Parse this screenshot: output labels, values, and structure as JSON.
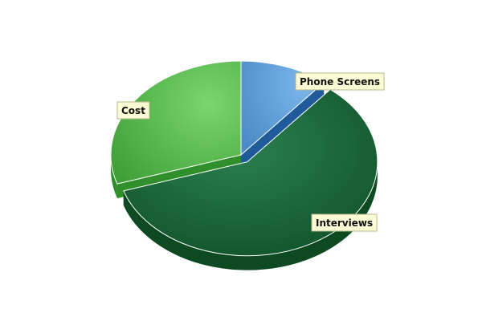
{
  "chart_data": {
    "type": "pie",
    "style": "3d-exploded",
    "slices": [
      {
        "label": "Phone Screens",
        "value": 11,
        "color": "#5f9fd8",
        "side_color": "#1f5a9a",
        "exploded": false
      },
      {
        "label": "Interviews",
        "value": 59,
        "color": "#1e6e3c",
        "side_color": "#0d4a22",
        "exploded": true
      },
      {
        "label": "Cost",
        "value": 30,
        "color": "#5cc25a",
        "side_color": "#2f8f2a",
        "exploded": false
      }
    ],
    "start_angle_deg": -90,
    "legend": "none",
    "labels": "callout-boxes"
  }
}
